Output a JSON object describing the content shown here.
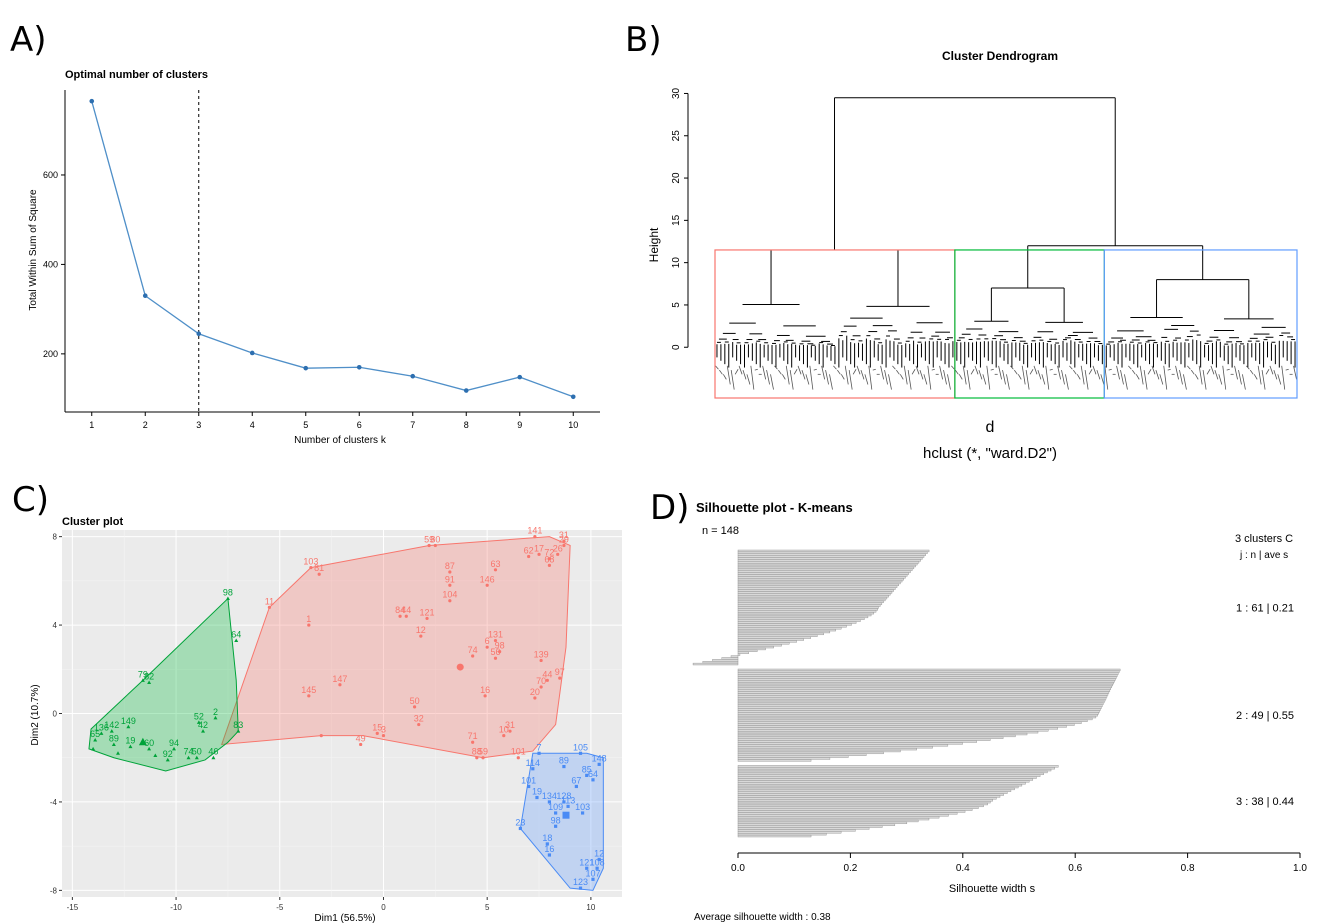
{
  "panel_labels": [
    "A)",
    "B)",
    "C)",
    "D)"
  ],
  "colors": {
    "red": "#F8766D",
    "green": "#00BA38",
    "blue": "#619CFF",
    "line": "#4f8fc8",
    "gray": "#BEBEBE"
  },
  "chart_data": [
    {
      "panel": "A",
      "type": "line",
      "title": "Optimal number of clusters",
      "xlabel": "Number of clusters k",
      "ylabel": "Total Within Sum of Square",
      "x": [
        1,
        2,
        3,
        4,
        5,
        6,
        7,
        8,
        9,
        10
      ],
      "y": [
        765,
        330,
        245,
        202,
        168,
        170,
        150,
        118,
        148,
        104
      ],
      "yticks": [
        200,
        400,
        600
      ],
      "xlim": [
        0.5,
        10.5
      ],
      "ylim": [
        70,
        790
      ],
      "vline_x": 3
    },
    {
      "panel": "B",
      "type": "dendrogram",
      "title": "Cluster Dendrogram",
      "ylabel": "Height",
      "xlabel": "d",
      "sub": "hclust (*, \"ward.D2\")",
      "yticks": [
        0,
        5,
        10,
        15,
        20,
        25,
        30
      ],
      "ylim": [
        -6,
        31
      ],
      "n_leaves": 148,
      "cluster_sizes": [
        61,
        38,
        49
      ],
      "merges": {
        "root": 29.5,
        "cluster1": 11.5,
        "cluster23": 12.0,
        "cluster2": 7.0,
        "cluster3": 8.0,
        "cut": 11.5
      }
    },
    {
      "panel": "C",
      "type": "scatter",
      "title": "Cluster plot",
      "xlabel": "Dim1 (56.5%)",
      "ylabel": "Dim2 (10.7%)",
      "xticks": [
        -15,
        -10,
        -5,
        0,
        5,
        10
      ],
      "yticks": [
        -8,
        -4,
        0,
        4,
        8
      ],
      "xlim": [
        -15.5,
        11.5
      ],
      "ylim": [
        -8.3,
        8.3
      ],
      "series": [
        {
          "cluster": 1,
          "hull": [
            [
              -7.8,
              -1.4
            ],
            [
              -5.5,
              4.8
            ],
            [
              -3.5,
              6.6
            ],
            [
              2.2,
              7.6
            ],
            [
              8.0,
              8.0
            ],
            [
              9.0,
              7.6
            ],
            [
              8.8,
              3.0
            ],
            [
              8.3,
              -0.5
            ],
            [
              7.2,
              -1.7
            ],
            [
              4.8,
              -2.0
            ],
            [
              -1.0,
              -1.0
            ],
            [
              -3.0,
              -1.0
            ]
          ],
          "points": [
            {
              "x": -3.5,
              "y": 6.6,
              "label": "103"
            },
            {
              "x": -3.1,
              "y": 6.3,
              "label": "81"
            },
            {
              "x": 2.2,
              "y": 7.6,
              "label": "59"
            },
            {
              "x": 2.5,
              "y": 7.6,
              "label": "80"
            },
            {
              "x": 7.3,
              "y": 8.0,
              "label": "141"
            },
            {
              "x": 8.7,
              "y": 7.8,
              "label": "31"
            },
            {
              "x": 8.7,
              "y": 7.6,
              "label": "29"
            },
            {
              "x": 7.0,
              "y": 7.1,
              "label": "62"
            },
            {
              "x": 7.5,
              "y": 7.2,
              "label": "17"
            },
            {
              "x": 8.0,
              "y": 7.0,
              "label": "72"
            },
            {
              "x": 8.4,
              "y": 7.2,
              "label": "26"
            },
            {
              "x": 8.0,
              "y": 6.7,
              "label": "68"
            },
            {
              "x": 5.4,
              "y": 6.5,
              "label": "63"
            },
            {
              "x": 3.2,
              "y": 6.4,
              "label": "87"
            },
            {
              "x": 3.2,
              "y": 5.8,
              "label": "91"
            },
            {
              "x": 5.0,
              "y": 5.8,
              "label": "146"
            },
            {
              "x": 3.2,
              "y": 5.1,
              "label": "104"
            },
            {
              "x": -5.5,
              "y": 4.8,
              "label": "11"
            },
            {
              "x": 0.8,
              "y": 4.4,
              "label": "84"
            },
            {
              "x": 1.1,
              "y": 4.4,
              "label": "44"
            },
            {
              "x": 2.1,
              "y": 4.3,
              "label": "121"
            },
            {
              "x": -3.6,
              "y": 4.0,
              "label": "1"
            },
            {
              "x": 1.8,
              "y": 3.5,
              "label": "12"
            },
            {
              "x": 5.4,
              "y": 3.3,
              "label": "131"
            },
            {
              "x": 5.0,
              "y": 3.0,
              "label": "6"
            },
            {
              "x": 5.6,
              "y": 2.8,
              "label": "98"
            },
            {
              "x": 5.4,
              "y": 2.5,
              "label": "56"
            },
            {
              "x": 4.3,
              "y": 2.6,
              "label": "74"
            },
            {
              "x": 7.6,
              "y": 2.4,
              "label": "139"
            },
            {
              "x": 7.9,
              "y": 1.5,
              "label": "44"
            },
            {
              "x": 8.5,
              "y": 1.6,
              "label": "97"
            },
            {
              "x": 7.6,
              "y": 1.2,
              "label": "70"
            },
            {
              "x": -2.1,
              "y": 1.3,
              "label": "147"
            },
            {
              "x": 4.9,
              "y": 0.8,
              "label": "16"
            },
            {
              "x": 7.3,
              "y": 0.7,
              "label": "20"
            },
            {
              "x": -3.6,
              "y": 0.8,
              "label": "145"
            },
            {
              "x": 1.5,
              "y": 0.3,
              "label": "50"
            },
            {
              "x": 1.7,
              "y": -0.5,
              "label": "32"
            },
            {
              "x": 6.1,
              "y": -0.8,
              "label": "31"
            },
            {
              "x": 5.8,
              "y": -1.0,
              "label": "10"
            },
            {
              "x": -0.3,
              "y": -0.9,
              "label": "15"
            },
            {
              "x": 0.0,
              "y": -1.0,
              "label": "3"
            },
            {
              "x": -1.1,
              "y": -1.4,
              "label": "49"
            },
            {
              "x": 4.3,
              "y": -1.3,
              "label": "71"
            },
            {
              "x": 4.5,
              "y": -2.0,
              "label": "88"
            },
            {
              "x": 4.8,
              "y": -2.0,
              "label": "59"
            },
            {
              "x": 6.5,
              "y": -2.0,
              "label": "101"
            },
            {
              "x": -3.0,
              "y": -1.0,
              "label": ""
            }
          ]
        },
        {
          "cluster": 2,
          "hull": [
            [
              -14.2,
              -1.6
            ],
            [
              -14.1,
              -0.7
            ],
            [
              -11.6,
              1.5
            ],
            [
              -7.5,
              5.2
            ],
            [
              -7.1,
              1.5
            ],
            [
              -7.0,
              -0.8
            ],
            [
              -7.5,
              -1.3
            ],
            [
              -8.6,
              -2.1
            ],
            [
              -10.5,
              -2.6
            ],
            [
              -13.0,
              -2.0
            ]
          ],
          "points": [
            {
              "x": -7.5,
              "y": 5.2,
              "label": "98"
            },
            {
              "x": -7.1,
              "y": 3.3,
              "label": "64"
            },
            {
              "x": -11.6,
              "y": 1.5,
              "label": "79"
            },
            {
              "x": -11.3,
              "y": 1.4,
              "label": "82"
            },
            {
              "x": -8.1,
              "y": -0.2,
              "label": "2"
            },
            {
              "x": -8.9,
              "y": -0.4,
              "label": "52"
            },
            {
              "x": -8.7,
              "y": -0.8,
              "label": "42"
            },
            {
              "x": -7.0,
              "y": -0.8,
              "label": "83"
            },
            {
              "x": -13.6,
              "y": -0.9,
              "label": "136"
            },
            {
              "x": -13.1,
              "y": -0.8,
              "label": "142"
            },
            {
              "x": -12.3,
              "y": -0.6,
              "label": "149"
            },
            {
              "x": -13.9,
              "y": -1.2,
              "label": "65"
            },
            {
              "x": -13.0,
              "y": -1.4,
              "label": "89"
            },
            {
              "x": -12.2,
              "y": -1.5,
              "label": "19"
            },
            {
              "x": -11.3,
              "y": -1.6,
              "label": "60"
            },
            {
              "x": -10.1,
              "y": -1.6,
              "label": "94"
            },
            {
              "x": -8.2,
              "y": -2.0,
              "label": "46"
            },
            {
              "x": -10.4,
              "y": -2.1,
              "label": "92"
            },
            {
              "x": -9.4,
              "y": -2.0,
              "label": "74"
            },
            {
              "x": -9.0,
              "y": -2.0,
              "label": "50"
            },
            {
              "x": -14.0,
              "y": -1.6,
              "label": ""
            },
            {
              "x": -12.8,
              "y": -1.8,
              "label": ""
            },
            {
              "x": -11.0,
              "y": -1.9,
              "label": ""
            }
          ]
        },
        {
          "cluster": 3,
          "hull": [
            [
              7.2,
              -1.8
            ],
            [
              9.8,
              -1.8
            ],
            [
              10.6,
              -2.0
            ],
            [
              10.6,
              -7.0
            ],
            [
              10.1,
              -8.0
            ],
            [
              9.0,
              -7.9
            ],
            [
              6.6,
              -5.2
            ]
          ],
          "points": [
            {
              "x": 7.5,
              "y": -1.8,
              "label": "7"
            },
            {
              "x": 9.5,
              "y": -1.8,
              "label": "105"
            },
            {
              "x": 10.4,
              "y": -2.3,
              "label": "148"
            },
            {
              "x": 8.7,
              "y": -2.4,
              "label": "89"
            },
            {
              "x": 7.2,
              "y": -2.5,
              "label": "114"
            },
            {
              "x": 9.8,
              "y": -2.8,
              "label": "85"
            },
            {
              "x": 10.1,
              "y": -3.0,
              "label": "64"
            },
            {
              "x": 9.3,
              "y": -3.3,
              "label": "67"
            },
            {
              "x": 7.0,
              "y": -3.3,
              "label": "101"
            },
            {
              "x": 7.4,
              "y": -3.8,
              "label": "19"
            },
            {
              "x": 8.0,
              "y": -4.0,
              "label": "134"
            },
            {
              "x": 8.7,
              "y": -4.0,
              "label": "128"
            },
            {
              "x": 8.9,
              "y": -4.2,
              "label": "113"
            },
            {
              "x": 8.3,
              "y": -4.5,
              "label": "109"
            },
            {
              "x": 9.6,
              "y": -4.5,
              "label": "103"
            },
            {
              "x": 8.3,
              "y": -5.1,
              "label": "98"
            },
            {
              "x": 6.6,
              "y": -5.2,
              "label": "23"
            },
            {
              "x": 7.9,
              "y": -5.9,
              "label": "18"
            },
            {
              "x": 8.0,
              "y": -6.4,
              "label": "16"
            },
            {
              "x": 10.4,
              "y": -6.6,
              "label": "12"
            },
            {
              "x": 9.8,
              "y": -7.0,
              "label": "121"
            },
            {
              "x": 10.3,
              "y": -7.0,
              "label": "108"
            },
            {
              "x": 10.1,
              "y": -7.5,
              "label": "107"
            },
            {
              "x": 9.5,
              "y": -7.9,
              "label": "123"
            }
          ]
        }
      ],
      "centroids": [
        {
          "x": 3.7,
          "y": 2.1,
          "shape": "circle"
        },
        {
          "x": -11.6,
          "y": -1.3,
          "shape": "triangle"
        },
        {
          "x": 8.8,
          "y": -4.6,
          "shape": "square"
        }
      ]
    },
    {
      "panel": "D",
      "type": "bar",
      "orientation": "horizontal",
      "title": "Silhouette plot - K-means",
      "n_label": "n = 148",
      "legend_title": "3 clusters  C",
      "legend_subtitle": "j :  n  | ave      s",
      "xlabel": "Silhouette width s",
      "footer": "Average silhouette width :  0.38",
      "xticks": [
        "0.0",
        "0.2",
        "0.4",
        "0.6",
        "0.8",
        "1.0"
      ],
      "xlim": [
        0,
        1
      ],
      "clusters": [
        {
          "label": "1 :  61  |  0.21",
          "n": 61,
          "max": 0.34,
          "mid": 0.25,
          "min": -0.08
        },
        {
          "label": "2 :  49  |  0.55",
          "n": 49,
          "max": 0.68,
          "mid": 0.64,
          "min": 0.13
        },
        {
          "label": "3 :  38  |  0.44",
          "n": 38,
          "max": 0.57,
          "mid": 0.45,
          "min": 0.13
        }
      ]
    }
  ]
}
